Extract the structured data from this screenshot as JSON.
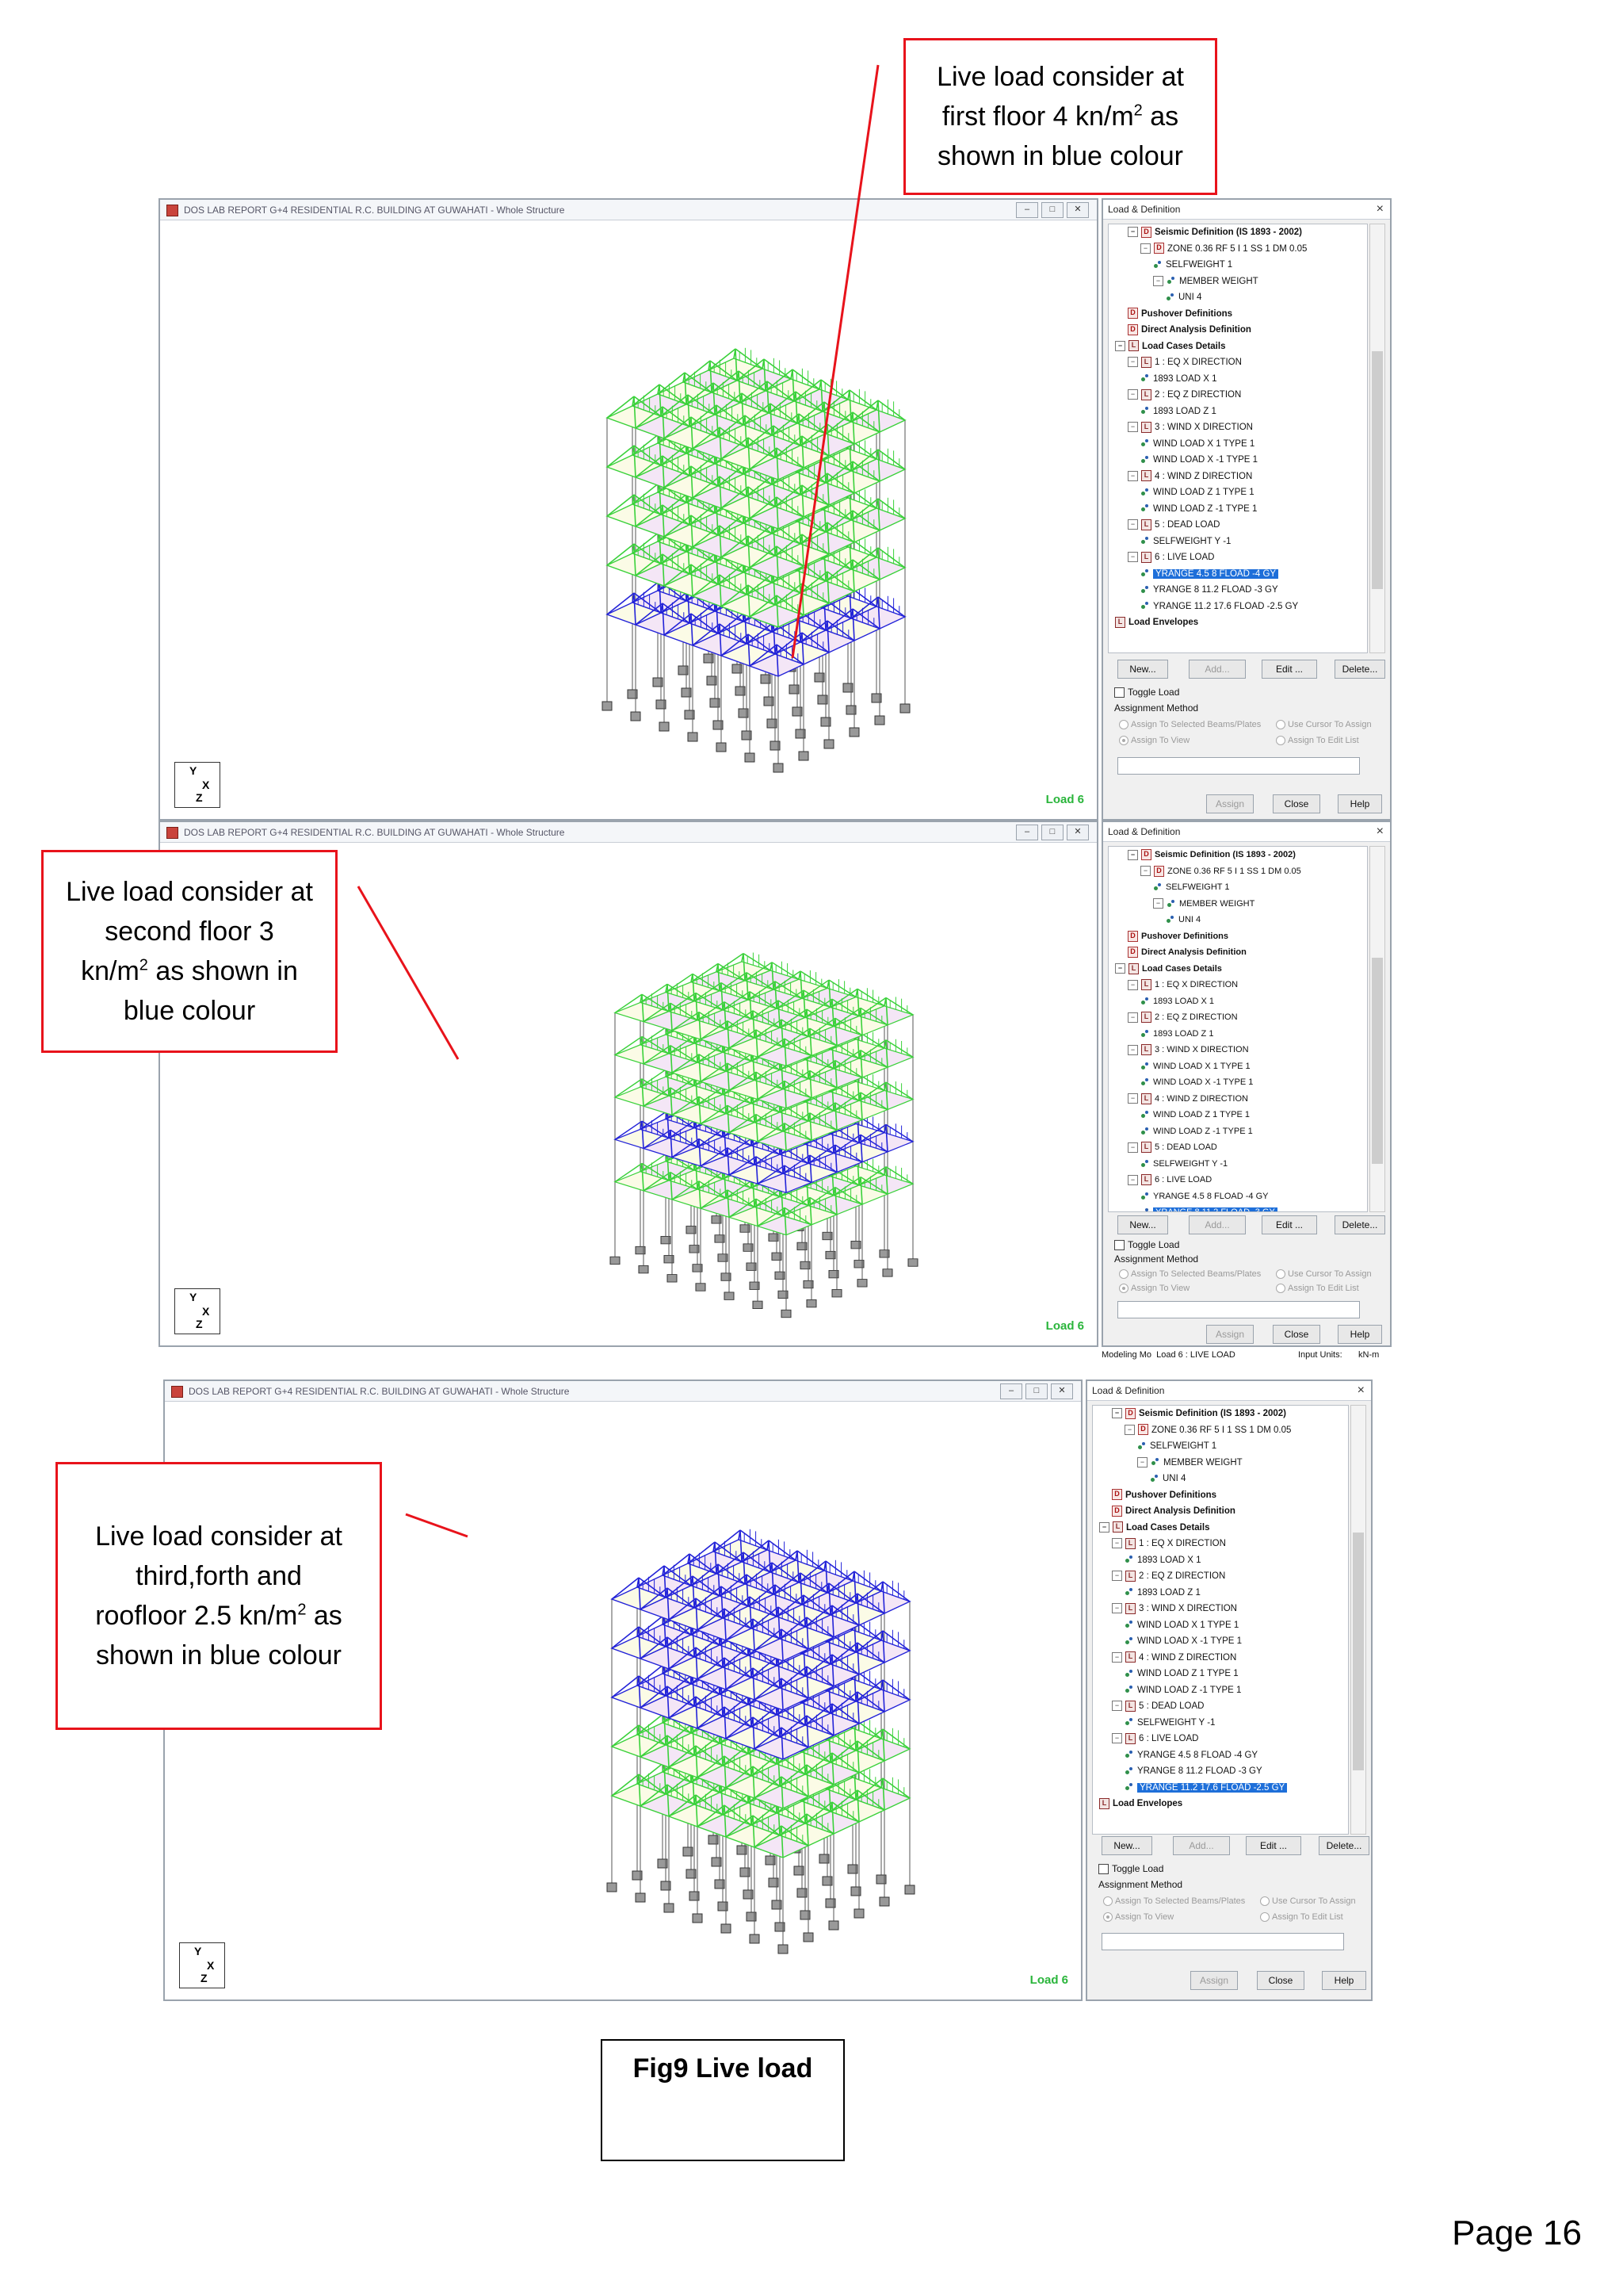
{
  "window_title": "DOS LAB REPORT G+4 RESIDENTIAL R.C. BUILDING AT GUWAHATI - Whole Structure",
  "window_buttons": [
    "–",
    "□",
    "✕"
  ],
  "load_label": "Load 6",
  "axes": {
    "y": "Y",
    "x": "X",
    "z": "Z"
  },
  "dialog": {
    "title": "Load & Definition",
    "close": "×",
    "tree": [
      {
        "text": "Seismic Definition (IS 1893 - 2002)",
        "kind": "d",
        "level": 1,
        "toggle": "−",
        "bold": true
      },
      {
        "text": "ZONE 0.36 RF 5 I 1 SS 1 DM 0.05",
        "kind": "dz",
        "level": 2,
        "toggle": "−"
      },
      {
        "text": "SELFWEIGHT 1",
        "kind": "n",
        "level": 3
      },
      {
        "text": "MEMBER WEIGHT",
        "kind": "n",
        "level": 3,
        "toggle": "−"
      },
      {
        "text": "UNI 4",
        "kind": "n",
        "level": 4
      },
      {
        "text": "Pushover Definitions",
        "kind": "d",
        "level": 1,
        "bold": true
      },
      {
        "text": "Direct Analysis Definition",
        "kind": "d",
        "level": 1,
        "bold": true
      },
      {
        "text": "Load Cases Details",
        "kind": "l",
        "level": 0,
        "toggle": "−",
        "bold": true
      },
      {
        "text": "1 : EQ X DIRECTION",
        "kind": "l",
        "level": 1,
        "toggle": "−"
      },
      {
        "text": "1893 LOAD X 1",
        "kind": "n",
        "level": 2
      },
      {
        "text": "2 : EQ Z DIRECTION",
        "kind": "l",
        "level": 1,
        "toggle": "−"
      },
      {
        "text": "1893 LOAD Z 1",
        "kind": "n",
        "level": 2
      },
      {
        "text": "3 : WIND X DIRECTION",
        "kind": "l",
        "level": 1,
        "toggle": "−"
      },
      {
        "text": "WIND LOAD X 1 TYPE 1",
        "kind": "n",
        "level": 2
      },
      {
        "text": "WIND LOAD X -1 TYPE 1",
        "kind": "n",
        "level": 2
      },
      {
        "text": "4 : WIND Z DIRECTION",
        "kind": "l",
        "level": 1,
        "toggle": "−"
      },
      {
        "text": "WIND LOAD Z 1 TYPE 1",
        "kind": "n",
        "level": 2
      },
      {
        "text": "WIND LOAD Z -1 TYPE 1",
        "kind": "n",
        "level": 2
      },
      {
        "text": "5 : DEAD LOAD",
        "kind": "l",
        "level": 1,
        "toggle": "−"
      },
      {
        "text": "SELFWEIGHT Y -1",
        "kind": "n",
        "level": 2
      },
      {
        "text": "6 : LIVE LOAD",
        "kind": "l",
        "level": 1,
        "toggle": "−"
      },
      {
        "text": "YRANGE 4.5 8 FLOAD -4 GY",
        "kind": "n",
        "level": 2,
        "sel_index": 0
      },
      {
        "text": "YRANGE 8 11.2 FLOAD -3 GY",
        "kind": "n",
        "level": 2,
        "sel_index": 1
      },
      {
        "text": "YRANGE 11.2 17.6 FLOAD -2.5 GY",
        "kind": "n",
        "level": 2,
        "sel_index": 2
      },
      {
        "text": "Load Envelopes",
        "kind": "l",
        "level": 0,
        "bold": true
      }
    ],
    "buttons": {
      "new": "New...",
      "add": "Add...",
      "edit": "Edit ...",
      "delete": "Delete..."
    },
    "toggle_load": "Toggle Load",
    "assignment_method": "Assignment Method",
    "radios": {
      "selected": "Assign To Selected Beams/Plates",
      "cursor": "Use Cursor To Assign",
      "view": "Assign To View",
      "edit_list": "Assign To Edit List"
    },
    "bottom_buttons": {
      "assign": "Assign",
      "close": "Close",
      "help": "Help"
    }
  },
  "status_bar": {
    "mode": "Modeling Mo",
    "load": "Load 6 : LIVE LOAD",
    "units": "Input Units:",
    "units_value": "kN-m"
  },
  "callouts": {
    "first": [
      "Live load consider at",
      "first floor 4 kn/m",
      "2",
      " as",
      "shown in blue colour"
    ],
    "second": [
      "Live load consider at",
      "second floor 3",
      "kn/m",
      "2",
      " as shown in",
      "blue colour"
    ],
    "third": [
      "Live load consider at",
      "third,forth and",
      "roofloor 2.5 kn/m",
      "2",
      " as",
      "shown in blue colour"
    ]
  },
  "caption": "Fig9 Live load",
  "page": "Page 16",
  "colors": {
    "highlight": "#2323d8",
    "green": "#3ad13a",
    "callout_border": "#e8131b",
    "selection": "#1e6fd9"
  }
}
